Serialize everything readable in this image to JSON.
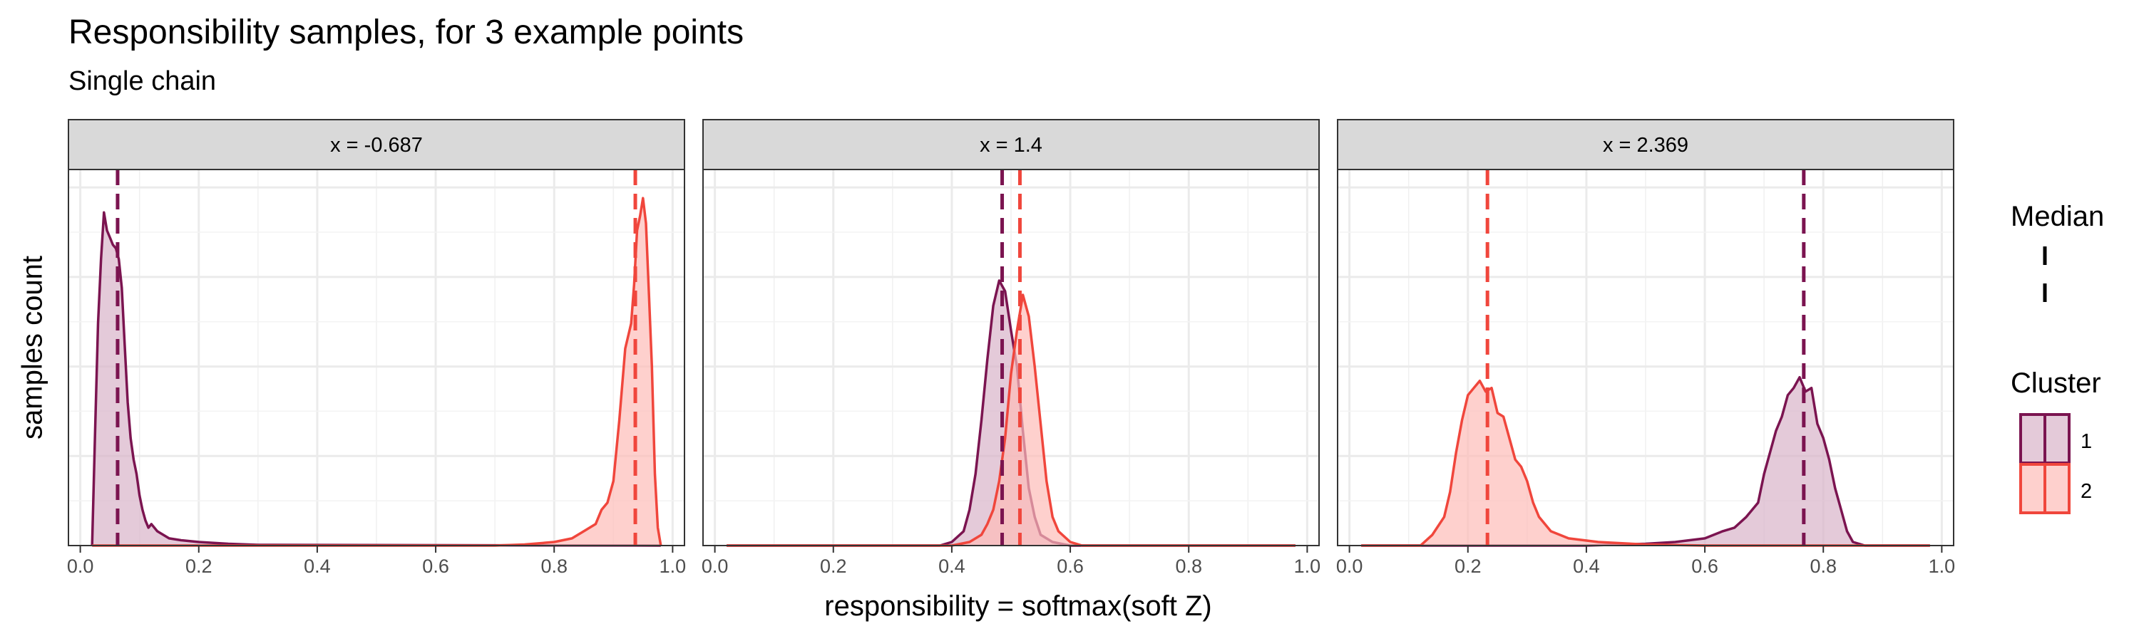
{
  "chart_data": {
    "type": "area",
    "title": "Responsibility samples, for 3 example points",
    "subtitle": "Single chain",
    "xlabel": "responsibility = softmax(soft Z)",
    "ylabel": "samples count",
    "xlim": [
      -0.02,
      1.02
    ],
    "ylim": [
      0,
      1.05
    ],
    "xticks": [
      "0.0",
      "0.2",
      "0.4",
      "0.6",
      "0.8",
      "1.0"
    ],
    "xtick_values": [
      0,
      0.2,
      0.4,
      0.6,
      0.8,
      1.0
    ],
    "ygrid_values": [
      0.125,
      0.25,
      0.375,
      0.5,
      0.625,
      0.75,
      0.875,
      1.0
    ],
    "grid": true,
    "legend_position": "right",
    "legend": {
      "median_title": "Median",
      "cluster_title": "Cluster",
      "entries": [
        {
          "label": "1",
          "color": "#7b1450",
          "fill": "#d8b4c9"
        },
        {
          "label": "2",
          "color": "#f0463c",
          "fill": "#fdbcb8"
        }
      ]
    },
    "panels": [
      {
        "strip": "x = -0.687",
        "series": [
          {
            "cluster": "1",
            "median": 0.063,
            "points": [
              [
                0.02,
                0
              ],
              [
                0.025,
                0.32
              ],
              [
                0.03,
                0.62
              ],
              [
                0.035,
                0.8
              ],
              [
                0.04,
                0.93
              ],
              [
                0.045,
                0.88
              ],
              [
                0.05,
                0.86
              ],
              [
                0.055,
                0.84
              ],
              [
                0.06,
                0.83
              ],
              [
                0.065,
                0.8
              ],
              [
                0.07,
                0.72
              ],
              [
                0.075,
                0.56
              ],
              [
                0.08,
                0.4
              ],
              [
                0.085,
                0.3
              ],
              [
                0.09,
                0.24
              ],
              [
                0.095,
                0.2
              ],
              [
                0.1,
                0.14
              ],
              [
                0.105,
                0.1
              ],
              [
                0.11,
                0.07
              ],
              [
                0.115,
                0.05
              ],
              [
                0.12,
                0.06
              ],
              [
                0.13,
                0.04
              ],
              [
                0.14,
                0.03
              ],
              [
                0.15,
                0.02
              ],
              [
                0.17,
                0.015
              ],
              [
                0.2,
                0.01
              ],
              [
                0.25,
                0.005
              ],
              [
                0.3,
                0.002
              ],
              [
                0.98,
                0
              ]
            ]
          },
          {
            "cluster": "2",
            "median": 0.937,
            "points": [
              [
                0.02,
                0
              ],
              [
                0.7,
                0
              ],
              [
                0.75,
                0.003
              ],
              [
                0.8,
                0.01
              ],
              [
                0.83,
                0.02
              ],
              [
                0.85,
                0.04
              ],
              [
                0.87,
                0.06
              ],
              [
                0.88,
                0.1
              ],
              [
                0.89,
                0.12
              ],
              [
                0.9,
                0.18
              ],
              [
                0.91,
                0.35
              ],
              [
                0.92,
                0.55
              ],
              [
                0.93,
                0.62
              ],
              [
                0.935,
                0.73
              ],
              [
                0.94,
                0.88
              ],
              [
                0.945,
                0.92
              ],
              [
                0.95,
                0.97
              ],
              [
                0.955,
                0.9
              ],
              [
                0.96,
                0.7
              ],
              [
                0.965,
                0.5
              ],
              [
                0.97,
                0.2
              ],
              [
                0.975,
                0.05
              ],
              [
                0.98,
                0
              ]
            ]
          }
        ]
      },
      {
        "strip": "x = 1.4",
        "series": [
          {
            "cluster": "1",
            "median": 0.485,
            "points": [
              [
                0.02,
                0
              ],
              [
                0.38,
                0
              ],
              [
                0.4,
                0.01
              ],
              [
                0.42,
                0.04
              ],
              [
                0.43,
                0.1
              ],
              [
                0.44,
                0.2
              ],
              [
                0.45,
                0.35
              ],
              [
                0.46,
                0.52
              ],
              [
                0.47,
                0.67
              ],
              [
                0.48,
                0.74
              ],
              [
                0.49,
                0.71
              ],
              [
                0.5,
                0.6
              ],
              [
                0.51,
                0.5
              ],
              [
                0.52,
                0.32
              ],
              [
                0.53,
                0.16
              ],
              [
                0.54,
                0.08
              ],
              [
                0.55,
                0.03
              ],
              [
                0.57,
                0.01
              ],
              [
                0.6,
                0
              ],
              [
                0.98,
                0
              ]
            ]
          },
          {
            "cluster": "2",
            "median": 0.515,
            "points": [
              [
                0.02,
                0
              ],
              [
                0.4,
                0
              ],
              [
                0.43,
                0.01
              ],
              [
                0.45,
                0.03
              ],
              [
                0.46,
                0.06
              ],
              [
                0.47,
                0.1
              ],
              [
                0.48,
                0.18
              ],
              [
                0.49,
                0.3
              ],
              [
                0.5,
                0.48
              ],
              [
                0.51,
                0.6
              ],
              [
                0.52,
                0.7
              ],
              [
                0.53,
                0.64
              ],
              [
                0.54,
                0.5
              ],
              [
                0.55,
                0.34
              ],
              [
                0.56,
                0.18
              ],
              [
                0.57,
                0.08
              ],
              [
                0.58,
                0.04
              ],
              [
                0.6,
                0.01
              ],
              [
                0.62,
                0
              ],
              [
                0.98,
                0
              ]
            ]
          }
        ]
      },
      {
        "strip": "x = 2.369",
        "series": [
          {
            "cluster": "1",
            "median": 0.767,
            "points": [
              [
                0.02,
                0
              ],
              [
                0.4,
                0
              ],
              [
                0.5,
                0.005
              ],
              [
                0.55,
                0.01
              ],
              [
                0.6,
                0.02
              ],
              [
                0.63,
                0.04
              ],
              [
                0.65,
                0.05
              ],
              [
                0.67,
                0.08
              ],
              [
                0.69,
                0.12
              ],
              [
                0.7,
                0.2
              ],
              [
                0.71,
                0.26
              ],
              [
                0.72,
                0.32
              ],
              [
                0.73,
                0.36
              ],
              [
                0.74,
                0.42
              ],
              [
                0.75,
                0.44
              ],
              [
                0.76,
                0.47
              ],
              [
                0.77,
                0.43
              ],
              [
                0.78,
                0.44
              ],
              [
                0.79,
                0.34
              ],
              [
                0.8,
                0.3
              ],
              [
                0.81,
                0.24
              ],
              [
                0.82,
                0.16
              ],
              [
                0.83,
                0.1
              ],
              [
                0.84,
                0.04
              ],
              [
                0.85,
                0.01
              ],
              [
                0.87,
                0
              ],
              [
                0.98,
                0
              ]
            ]
          },
          {
            "cluster": "2",
            "median": 0.233,
            "points": [
              [
                0.02,
                0
              ],
              [
                0.12,
                0
              ],
              [
                0.14,
                0.03
              ],
              [
                0.16,
                0.08
              ],
              [
                0.17,
                0.15
              ],
              [
                0.18,
                0.26
              ],
              [
                0.19,
                0.35
              ],
              [
                0.2,
                0.42
              ],
              [
                0.21,
                0.44
              ],
              [
                0.22,
                0.46
              ],
              [
                0.23,
                0.43
              ],
              [
                0.24,
                0.44
              ],
              [
                0.25,
                0.37
              ],
              [
                0.26,
                0.36
              ],
              [
                0.27,
                0.3
              ],
              [
                0.28,
                0.24
              ],
              [
                0.29,
                0.22
              ],
              [
                0.3,
                0.18
              ],
              [
                0.31,
                0.12
              ],
              [
                0.32,
                0.08
              ],
              [
                0.34,
                0.04
              ],
              [
                0.37,
                0.02
              ],
              [
                0.42,
                0.01
              ],
              [
                0.5,
                0.003
              ],
              [
                0.6,
                0
              ],
              [
                0.98,
                0
              ]
            ]
          }
        ]
      }
    ]
  }
}
